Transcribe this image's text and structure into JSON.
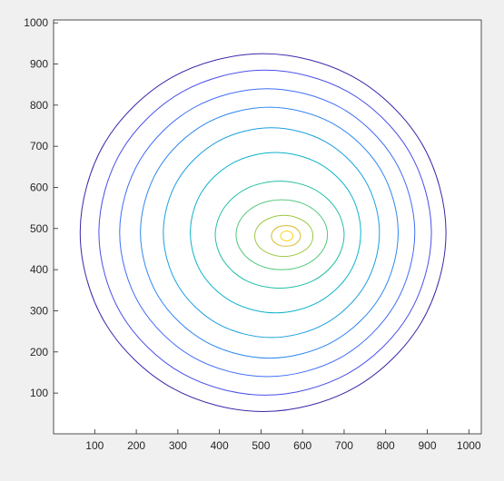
{
  "chart_data": {
    "type": "contour",
    "xlim": [
      1,
      1030
    ],
    "ylim": [
      1,
      1007
    ],
    "xticks": [
      100,
      200,
      300,
      400,
      500,
      600,
      700,
      800,
      900,
      1000
    ],
    "yticks": [
      100,
      200,
      300,
      400,
      500,
      600,
      700,
      800,
      900,
      1000
    ],
    "contours": [
      {
        "color": "#3e26a8",
        "x": [
          945,
          886,
          725,
          505,
          285,
          124,
          65,
          124,
          285,
          505,
          725,
          886
        ],
        "y": [
          490,
          708,
          867,
          925,
          867,
          708,
          490,
          272,
          113,
          55,
          113,
          272
        ]
      },
      {
        "color": "#4a4fe8",
        "x": [
          910,
          856,
          710,
          510,
          310,
          164,
          110,
          164,
          310,
          510,
          710,
          856
        ],
        "y": [
          490,
          688,
          832,
          885,
          832,
          688,
          490,
          292,
          148,
          95,
          148,
          292
        ]
      },
      {
        "color": "#3f6cf6",
        "x": [
          870,
          822,
          693,
          515,
          337,
          208,
          160,
          208,
          337,
          515,
          693,
          822
        ],
        "y": [
          490,
          665,
          793,
          840,
          793,
          665,
          490,
          315,
          187,
          140,
          187,
          315
        ]
      },
      {
        "color": "#2e87f1",
        "x": [
          830,
          788,
          675,
          520,
          365,
          252,
          210,
          252,
          365,
          520,
          675,
          788
        ],
        "y": [
          490,
          643,
          754,
          795,
          754,
          643,
          490,
          337,
          226,
          185,
          226,
          337
        ]
      },
      {
        "color": "#1a9fe0",
        "x": [
          785,
          750,
          655,
          525,
          395,
          300,
          265,
          300,
          395,
          525,
          655,
          750
        ],
        "y": [
          490,
          618,
          711,
          745,
          711,
          618,
          490,
          362,
          269,
          235,
          269,
          362
        ]
      },
      {
        "color": "#0db3c9",
        "x": [
          740,
          713,
          638,
          535,
          432,
          357,
          330,
          357,
          432,
          535,
          638,
          713
        ],
        "y": [
          490,
          588,
          659,
          685,
          659,
          588,
          490,
          392,
          321,
          295,
          321,
          392
        ]
      },
      {
        "color": "#23bfa4",
        "x": [
          700,
          679,
          623,
          545,
          467,
          411,
          390,
          411,
          467,
          545,
          623,
          679
        ],
        "y": [
          485,
          550,
          598,
          615,
          598,
          550,
          485,
          420,
          372,
          355,
          372,
          420
        ]
      },
      {
        "color": "#52c67a",
        "x": [
          660,
          645,
          605,
          550,
          495,
          455,
          440,
          455,
          495,
          550,
          605,
          645
        ],
        "y": [
          485,
          528,
          559,
          570,
          559,
          528,
          485,
          442,
          411,
          400,
          411,
          442
        ]
      },
      {
        "color": "#9bc744",
        "x": [
          625,
          616,
          590,
          555,
          520,
          494,
          485,
          494,
          520,
          555,
          590,
          616
        ],
        "y": [
          482,
          507,
          525,
          532,
          525,
          507,
          482,
          457,
          439,
          432,
          439,
          457
        ]
      },
      {
        "color": "#d6bd2d",
        "x": [
          595,
          590,
          578,
          560,
          542,
          530,
          525,
          530,
          542,
          560,
          578,
          590
        ],
        "y": [
          482,
          495,
          504,
          507,
          504,
          495,
          482,
          469,
          460,
          457,
          460,
          469
        ]
      },
      {
        "color": "#f9d41f",
        "x": [
          577,
          575,
          570,
          562,
          554,
          549,
          547,
          549,
          554,
          562,
          570,
          575
        ],
        "y": [
          482,
          488,
          492,
          494,
          492,
          488,
          482,
          476,
          472,
          470,
          472,
          476
        ]
      }
    ]
  }
}
